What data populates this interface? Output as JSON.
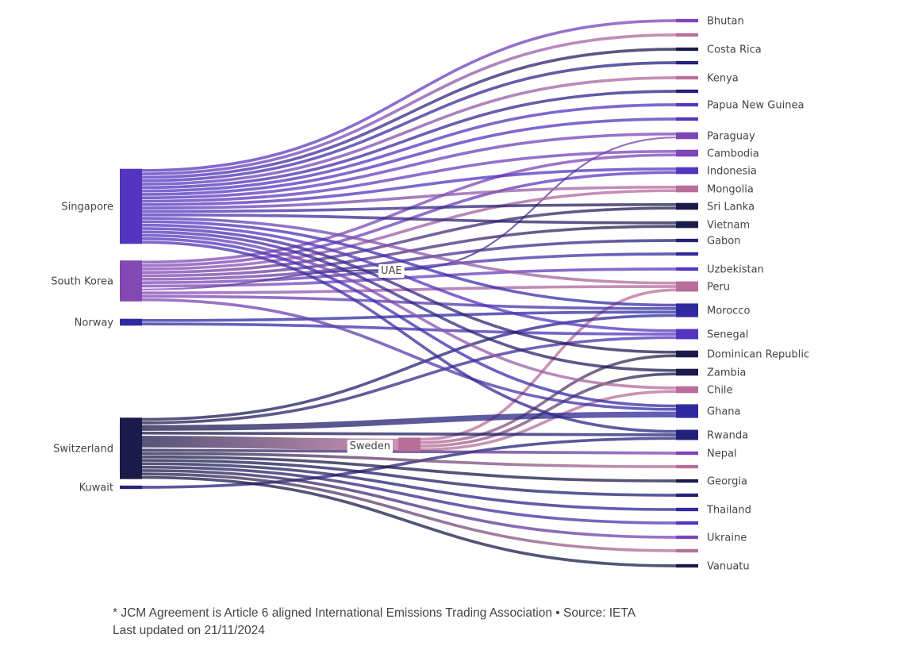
{
  "chart_data": {
    "type": "sankey",
    "title": "",
    "nodes": [
      {
        "id": "singapore",
        "label": "Singapore",
        "color": "#5335bf"
      },
      {
        "id": "south_korea",
        "label": "South Korea",
        "color": "#8249b5"
      },
      {
        "id": "norway",
        "label": "Norway",
        "color": "#2f2aa0"
      },
      {
        "id": "switzerland",
        "label": "Switzerland",
        "color": "#1b1a4a"
      },
      {
        "id": "kuwait",
        "label": "Kuwait",
        "color": "#24217a"
      },
      {
        "id": "uae",
        "label": "UAE",
        "color": "#24217a"
      },
      {
        "id": "sweden",
        "label": "Sweden",
        "color": "#b96d9a"
      },
      {
        "id": "bhutan",
        "label": "Bhutan",
        "color": "#7e45b8"
      },
      {
        "id": "r1",
        "label": "",
        "color": "#b96d9a"
      },
      {
        "id": "costa_rica",
        "label": "Costa Rica",
        "color": "#1b1a4a"
      },
      {
        "id": "r3",
        "label": "",
        "color": "#24217a"
      },
      {
        "id": "kenya",
        "label": "Kenya",
        "color": "#b96d9a"
      },
      {
        "id": "r5",
        "label": "",
        "color": "#24217a"
      },
      {
        "id": "png",
        "label": "Papua New Guinea",
        "color": "#5335bf"
      },
      {
        "id": "r7",
        "label": "",
        "color": "#5335bf"
      },
      {
        "id": "paraguay",
        "label": "Paraguay",
        "color": "#7e45b8"
      },
      {
        "id": "cambodia",
        "label": "Cambodia",
        "color": "#7e45b8"
      },
      {
        "id": "indonesia",
        "label": "Indonesia",
        "color": "#5335bf"
      },
      {
        "id": "mongolia",
        "label": "Mongolia",
        "color": "#b96d9a"
      },
      {
        "id": "sri_lanka",
        "label": "Sri Lanka",
        "color": "#1b1a4a"
      },
      {
        "id": "vietnam",
        "label": "Vietnam",
        "color": "#1b1a4a"
      },
      {
        "id": "gabon",
        "label": "Gabon",
        "color": "#24217a"
      },
      {
        "id": "r15",
        "label": "",
        "color": "#2f2aa0"
      },
      {
        "id": "uzbekistan",
        "label": "Uzbekistan",
        "color": "#5335bf"
      },
      {
        "id": "peru",
        "label": "Peru",
        "color": "#b96d9a"
      },
      {
        "id": "morocco",
        "label": "Morocco",
        "color": "#2f2aa0"
      },
      {
        "id": "senegal",
        "label": "Senegal",
        "color": "#5335bf"
      },
      {
        "id": "dominican_republic",
        "label": "Dominican Republic",
        "color": "#1b1a4a"
      },
      {
        "id": "zambia",
        "label": "Zambia",
        "color": "#1b1a4a"
      },
      {
        "id": "chile",
        "label": "Chile",
        "color": "#b96d9a"
      },
      {
        "id": "ghana",
        "label": "Ghana",
        "color": "#2f2aa0"
      },
      {
        "id": "rwanda",
        "label": "Rwanda",
        "color": "#24217a"
      },
      {
        "id": "nepal",
        "label": "Nepal",
        "color": "#7e45b8"
      },
      {
        "id": "r26",
        "label": "",
        "color": "#b96d9a"
      },
      {
        "id": "georgia",
        "label": "Georgia",
        "color": "#1b1a4a"
      },
      {
        "id": "r28",
        "label": "",
        "color": "#24217a"
      },
      {
        "id": "thailand",
        "label": "Thailand",
        "color": "#2f2aa0"
      },
      {
        "id": "r30",
        "label": "",
        "color": "#5335bf"
      },
      {
        "id": "ukraine",
        "label": "Ukraine",
        "color": "#7e45b8"
      },
      {
        "id": "r32",
        "label": "",
        "color": "#b96d9a"
      },
      {
        "id": "vanuatu",
        "label": "Vanuatu",
        "color": "#1b1a4a"
      }
    ],
    "links": [
      [
        "singapore",
        "bhutan",
        1
      ],
      [
        "singapore",
        "r1",
        1
      ],
      [
        "singapore",
        "costa_rica",
        1
      ],
      [
        "singapore",
        "r3",
        1
      ],
      [
        "singapore",
        "kenya",
        1
      ],
      [
        "singapore",
        "r5",
        1
      ],
      [
        "singapore",
        "png",
        1
      ],
      [
        "singapore",
        "r7",
        1
      ],
      [
        "singapore",
        "paraguay",
        1
      ],
      [
        "uae",
        "paraguay",
        1
      ],
      [
        "singapore",
        "cambodia",
        1
      ],
      [
        "south_korea",
        "cambodia",
        1
      ],
      [
        "singapore",
        "indonesia",
        1
      ],
      [
        "south_korea",
        "indonesia",
        1
      ],
      [
        "singapore",
        "mongolia",
        1
      ],
      [
        "south_korea",
        "mongolia",
        1
      ],
      [
        "singapore",
        "sri_lanka",
        1
      ],
      [
        "south_korea",
        "sri_lanka",
        1
      ],
      [
        "singapore",
        "vietnam",
        1
      ],
      [
        "south_korea",
        "vietnam",
        1
      ],
      [
        "south_korea",
        "gabon",
        1
      ],
      [
        "south_korea",
        "r15",
        1
      ],
      [
        "south_korea",
        "uzbekistan",
        1
      ],
      [
        "south_korea",
        "peru",
        1
      ],
      [
        "singapore",
        "peru",
        1
      ],
      [
        "sweden",
        "peru",
        1
      ],
      [
        "singapore",
        "morocco",
        1
      ],
      [
        "south_korea",
        "morocco",
        1
      ],
      [
        "norway",
        "morocco",
        1
      ],
      [
        "switzerland",
        "morocco",
        1
      ],
      [
        "singapore",
        "senegal",
        1
      ],
      [
        "norway",
        "senegal",
        1
      ],
      [
        "switzerland",
        "senegal",
        1
      ],
      [
        "singapore",
        "dominican_republic",
        1
      ],
      [
        "sweden",
        "dominican_republic",
        1
      ],
      [
        "singapore",
        "zambia",
        1
      ],
      [
        "sweden",
        "zambia",
        1
      ],
      [
        "singapore",
        "chile",
        1
      ],
      [
        "sweden",
        "chile",
        1
      ],
      [
        "singapore",
        "ghana",
        1
      ],
      [
        "south_korea",
        "ghana",
        1
      ],
      [
        "switzerland",
        "ghana",
        2
      ],
      [
        "singapore",
        "rwanda",
        1
      ],
      [
        "kuwait",
        "rwanda",
        1
      ],
      [
        "switzerland",
        "rwanda",
        1
      ],
      [
        "south_korea",
        "uae",
        1
      ],
      [
        "switzerland",
        "sweden",
        4
      ],
      [
        "switzerland",
        "nepal",
        1
      ],
      [
        "switzerland",
        "r26",
        1
      ],
      [
        "switzerland",
        "georgia",
        1
      ],
      [
        "switzerland",
        "r28",
        1
      ],
      [
        "switzerland",
        "thailand",
        1
      ],
      [
        "switzerland",
        "r30",
        1
      ],
      [
        "switzerland",
        "ukraine",
        1
      ],
      [
        "switzerland",
        "r32",
        1
      ],
      [
        "switzerland",
        "vanuatu",
        1
      ]
    ]
  },
  "footer": {
    "note": "* JCM Agreement is Article 6 aligned International Emissions Trading Association • Source: IETA",
    "updated": "Last updated on 21/11/2024"
  }
}
